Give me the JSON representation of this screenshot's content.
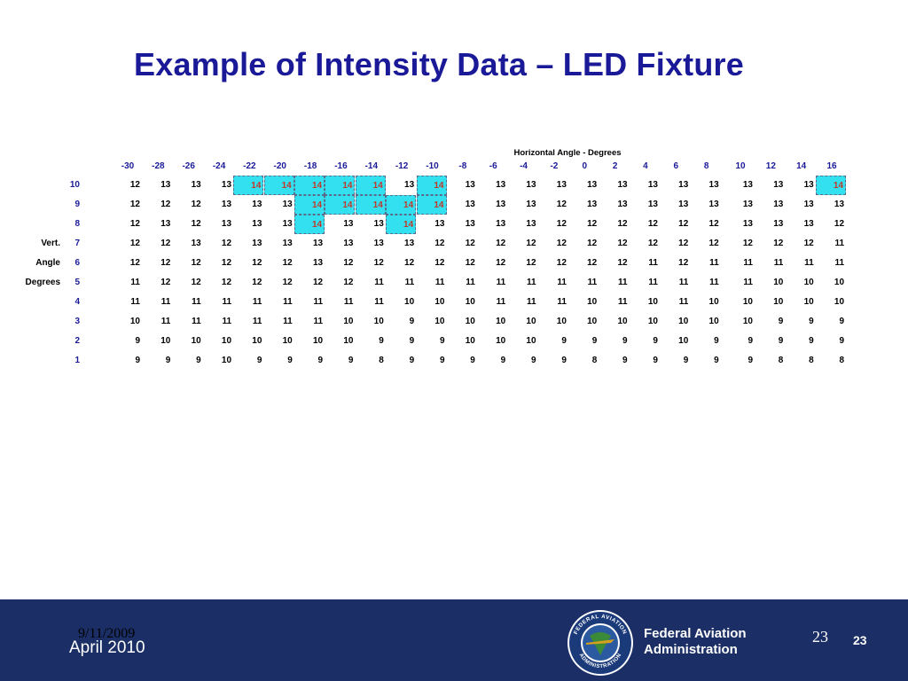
{
  "slide": {
    "title": "Example of Intensity Data – LED Fixture"
  },
  "table": {
    "horizontal_title": "Horizontal Angle  -  Degrees",
    "col_headers": [
      "-30",
      "-28",
      "-26",
      "-24",
      "-22",
      "-20",
      "-18",
      "-16",
      "-14",
      "-12",
      "-10",
      "-8",
      "-6",
      "-4",
      "-2",
      "0",
      "2",
      "4",
      "6",
      "8",
      "10",
      "12",
      "14",
      "16"
    ],
    "vertical_labels": [
      {
        "row": 4,
        "text": "Vert."
      },
      {
        "row": 5,
        "text": "Angle"
      },
      {
        "row": 6,
        "text": "Degrees"
      }
    ],
    "rows": [
      {
        "label": "10",
        "values": [
          12,
          13,
          13,
          13,
          14,
          14,
          14,
          14,
          14,
          13,
          14,
          13,
          13,
          13,
          13,
          13,
          13,
          13,
          13,
          13,
          13,
          13,
          13,
          14
        ],
        "highlight": [
          4,
          5,
          6,
          7,
          8,
          10,
          23
        ]
      },
      {
        "label": "9",
        "values": [
          12,
          12,
          12,
          13,
          13,
          13,
          14,
          14,
          14,
          14,
          14,
          13,
          13,
          13,
          12,
          13,
          13,
          13,
          13,
          13,
          13,
          13,
          13,
          13
        ],
        "highlight": [
          6,
          7,
          8,
          9,
          10
        ]
      },
      {
        "label": "8",
        "values": [
          12,
          13,
          12,
          13,
          13,
          13,
          14,
          13,
          13,
          14,
          13,
          13,
          13,
          13,
          12,
          12,
          12,
          12,
          12,
          12,
          13,
          13,
          13,
          12
        ],
        "highlight": [
          6,
          9
        ]
      },
      {
        "label": "7",
        "values": [
          12,
          12,
          13,
          12,
          13,
          13,
          13,
          13,
          13,
          13,
          12,
          12,
          12,
          12,
          12,
          12,
          12,
          12,
          12,
          12,
          12,
          12,
          12,
          11
        ],
        "highlight": []
      },
      {
        "label": "6",
        "values": [
          12,
          12,
          12,
          12,
          12,
          12,
          13,
          12,
          12,
          12,
          12,
          12,
          12,
          12,
          12,
          12,
          12,
          11,
          12,
          11,
          11,
          11,
          11,
          11
        ],
        "highlight": []
      },
      {
        "label": "5",
        "values": [
          11,
          12,
          12,
          12,
          12,
          12,
          12,
          12,
          11,
          11,
          11,
          11,
          11,
          11,
          11,
          11,
          11,
          11,
          11,
          11,
          11,
          10,
          10,
          10
        ],
        "highlight": []
      },
      {
        "label": "4",
        "values": [
          11,
          11,
          11,
          11,
          11,
          11,
          11,
          11,
          11,
          10,
          10,
          10,
          11,
          11,
          11,
          10,
          11,
          10,
          11,
          10,
          10,
          10,
          10,
          10
        ],
        "highlight": []
      },
      {
        "label": "3",
        "values": [
          10,
          11,
          11,
          11,
          11,
          11,
          11,
          10,
          10,
          9,
          10,
          10,
          10,
          10,
          10,
          10,
          10,
          10,
          10,
          10,
          10,
          9,
          9,
          9
        ],
        "highlight": []
      },
      {
        "label": "2",
        "values": [
          9,
          10,
          10,
          10,
          10,
          10,
          10,
          10,
          9,
          9,
          9,
          10,
          10,
          10,
          9,
          9,
          9,
          9,
          10,
          9,
          9,
          9,
          9,
          9
        ],
        "highlight": []
      },
      {
        "label": "1",
        "values": [
          9,
          9,
          9,
          10,
          9,
          9,
          9,
          9,
          8,
          9,
          9,
          9,
          9,
          9,
          9,
          8,
          9,
          9,
          9,
          9,
          9,
          8,
          8,
          8
        ],
        "highlight": []
      }
    ]
  },
  "footer": {
    "date": "9/11/2009",
    "month": "April 2010",
    "org_line1": "Federal Aviation",
    "org_line2": "Administration",
    "page_serif": "23",
    "page_bold": "23",
    "seal_top_text": "FEDERAL AVIATION",
    "seal_bottom_text": "ADMINISTRATION",
    "colors": {
      "bar": "#1b2f66",
      "highlight": "#33e0f0",
      "accent": "#1a1a99"
    }
  }
}
